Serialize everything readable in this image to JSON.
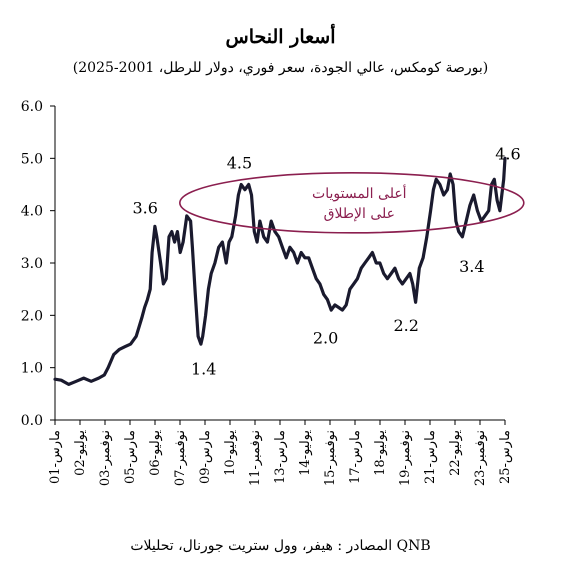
{
  "chart_data": {
    "type": "line",
    "title": "أسعار النحاس",
    "subtitle": "(بورصة كومكس، عالي الجودة، سعر فوري، دولار للرطل، 2001-2025)",
    "source": "المصادر : هيفر، وول ستريت جورنال، تحليلات QNB",
    "ylim": [
      0,
      6
    ],
    "y_ticks": [
      "0.0",
      "1.0",
      "2.0",
      "3.0",
      "4.0",
      "5.0",
      "6.0"
    ],
    "x_ticks": [
      "مارس-01",
      "يوليو-02",
      "نوفمبر-03",
      "مارس-05",
      "يوليو-06",
      "نوفمبر-07",
      "مارس-09",
      "يوليو-10",
      "نوفمبر-11",
      "مارس-13",
      "يوليو-14",
      "نوفمبر-15",
      "مارس-17",
      "يوليو-18",
      "نوفمبر-19",
      "مارس-21",
      "يوليو-22",
      "نوفمبر-23",
      "مارس-25"
    ],
    "xlim": [
      2001.17,
      2025.17
    ],
    "series": [
      {
        "color": "#1a1a2e",
        "x": [
          2001.17,
          2001.5,
          2001.9,
          2002.3,
          2002.7,
          2003.1,
          2003.5,
          2003.8,
          2004.0,
          2004.3,
          2004.6,
          2004.9,
          2005.2,
          2005.5,
          2005.8,
          2005.95,
          2006.1,
          2006.25,
          2006.35,
          2006.5,
          2006.6,
          2006.8,
          2006.95,
          2007.1,
          2007.25,
          2007.4,
          2007.55,
          2007.7,
          2007.85,
          2008.0,
          2008.2,
          2008.4,
          2008.5,
          2008.65,
          2008.8,
          2008.95,
          2009.05,
          2009.2,
          2009.35,
          2009.5,
          2009.7,
          2009.9,
          2010.1,
          2010.3,
          2010.45,
          2010.6,
          2010.8,
          2010.95,
          2011.1,
          2011.3,
          2011.5,
          2011.65,
          2011.8,
          2011.95,
          2012.1,
          2012.3,
          2012.5,
          2012.7,
          2012.9,
          2013.1,
          2013.3,
          2013.5,
          2013.7,
          2013.9,
          2014.1,
          2014.3,
          2014.5,
          2014.7,
          2014.9,
          2015.1,
          2015.3,
          2015.5,
          2015.7,
          2015.9,
          2016.1,
          2016.3,
          2016.5,
          2016.7,
          2016.9,
          2017.1,
          2017.3,
          2017.5,
          2017.7,
          2017.9,
          2018.1,
          2018.3,
          2018.5,
          2018.7,
          2018.9,
          2019.1,
          2019.3,
          2019.5,
          2019.7,
          2019.9,
          2020.1,
          2020.25,
          2020.4,
          2020.6,
          2020.8,
          2021.0,
          2021.2,
          2021.35,
          2021.5,
          2021.7,
          2021.9,
          2022.1,
          2022.25,
          2022.4,
          2022.55,
          2022.7,
          2022.9,
          2023.1,
          2023.3,
          2023.5,
          2023.7,
          2023.9,
          2024.1,
          2024.3,
          2024.45,
          2024.6,
          2024.75,
          2024.9,
          2025.0,
          2025.1,
          2025.17
        ],
        "y": [
          0.78,
          0.76,
          0.68,
          0.74,
          0.8,
          0.74,
          0.8,
          0.86,
          1.0,
          1.25,
          1.35,
          1.4,
          1.45,
          1.6,
          1.95,
          2.15,
          2.3,
          2.5,
          3.2,
          3.7,
          3.5,
          3.0,
          2.6,
          2.7,
          3.5,
          3.6,
          3.4,
          3.6,
          3.2,
          3.4,
          3.9,
          3.8,
          3.3,
          2.4,
          1.6,
          1.45,
          1.6,
          2.0,
          2.5,
          2.8,
          3.0,
          3.3,
          3.4,
          3.0,
          3.4,
          3.5,
          3.9,
          4.3,
          4.5,
          4.4,
          4.5,
          4.3,
          3.6,
          3.4,
          3.8,
          3.5,
          3.4,
          3.8,
          3.6,
          3.5,
          3.3,
          3.1,
          3.3,
          3.2,
          3.0,
          3.2,
          3.1,
          3.1,
          2.9,
          2.7,
          2.6,
          2.4,
          2.3,
          2.1,
          2.2,
          2.15,
          2.1,
          2.2,
          2.5,
          2.6,
          2.7,
          2.9,
          3.0,
          3.1,
          3.2,
          3.0,
          3.0,
          2.8,
          2.7,
          2.8,
          2.9,
          2.7,
          2.6,
          2.7,
          2.8,
          2.6,
          2.25,
          2.9,
          3.1,
          3.5,
          4.0,
          4.4,
          4.6,
          4.5,
          4.3,
          4.4,
          4.7,
          4.5,
          3.8,
          3.6,
          3.5,
          3.8,
          4.1,
          4.3,
          4.0,
          3.8,
          3.9,
          4.0,
          4.5,
          4.6,
          4.2,
          4.0,
          4.3,
          4.6,
          5.0
        ]
      }
    ],
    "annotations": [
      {
        "text": "3.6",
        "x": 2006.3,
        "y": 3.6
      },
      {
        "text": "1.4",
        "x": 2009.1,
        "y": 1.4
      },
      {
        "text": "4.5",
        "x": 2010.9,
        "y": 4.5
      },
      {
        "text": "2.0",
        "x": 2015.6,
        "y": 2.0
      },
      {
        "text": "2.2",
        "x": 2019.9,
        "y": 2.2
      },
      {
        "text": "3.4",
        "x": 2023.4,
        "y": 3.4
      },
      {
        "text": "4.6",
        "x": 2024.9,
        "y": 4.6
      }
    ],
    "callout": {
      "line1": "أعلى المستويات",
      "line2": "على الإطلاق",
      "color": "#8b1f4f"
    },
    "grid": false
  }
}
